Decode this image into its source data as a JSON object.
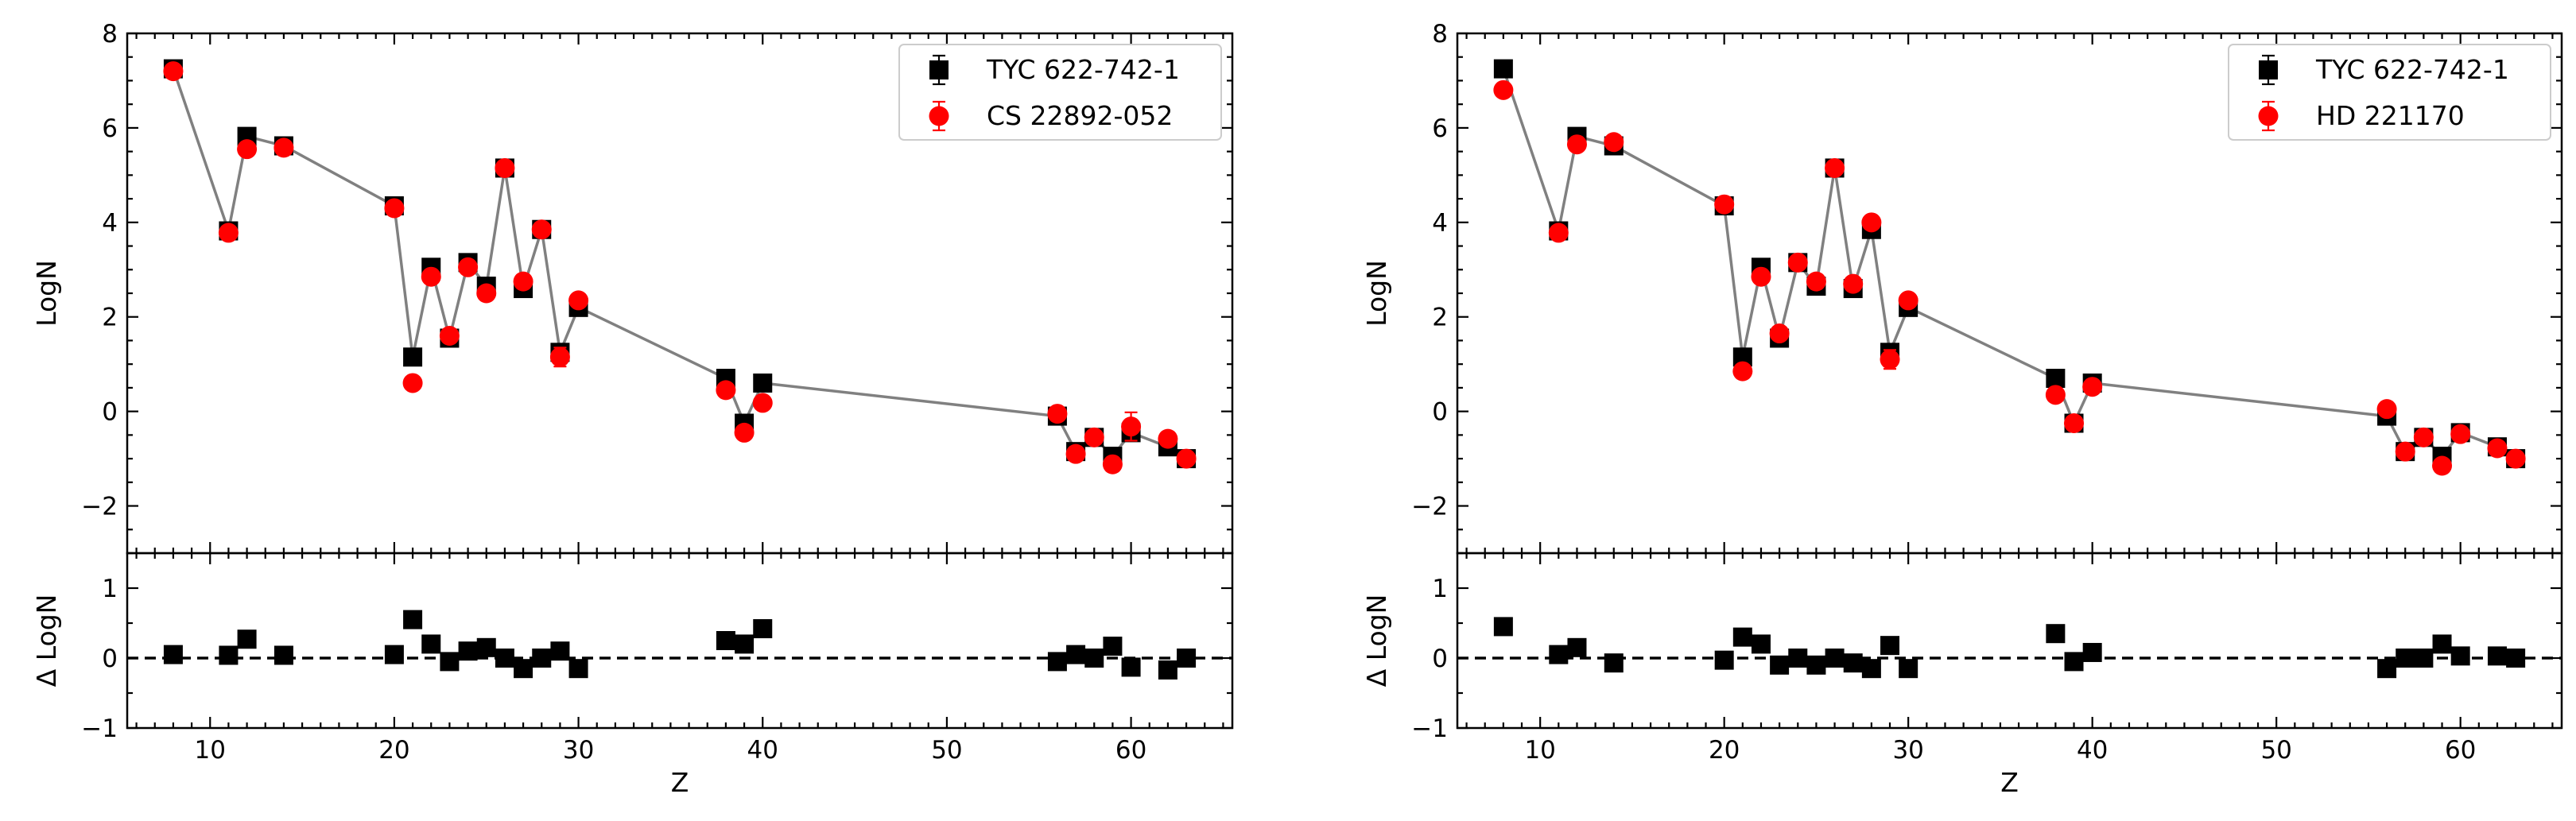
{
  "chart_data": [
    {
      "type": "scatter",
      "panel": "left",
      "xlabel": "Z",
      "ylabel_top": "LogN",
      "ylabel_bottom": "Δ LogN",
      "xlim": [
        5.5,
        65.5
      ],
      "ylim_top": [
        -3,
        8
      ],
      "ylim_bottom": [
        -1,
        1.5
      ],
      "xticks": [
        10,
        20,
        30,
        40,
        50,
        60
      ],
      "xtick_labels": [
        "10",
        "20",
        "30",
        "40",
        "50",
        "60"
      ],
      "yticks_top": [
        -2,
        0,
        2,
        4,
        6,
        8
      ],
      "ytick_labels_top": [
        "−2",
        "0",
        "2",
        "4",
        "6",
        "8"
      ],
      "yticks_bottom": [
        -1,
        0,
        1
      ],
      "ytick_labels_bottom": [
        "−1",
        "0",
        "1"
      ],
      "legend_position": "top-right",
      "series": [
        {
          "name": "TYC 622-742-1",
          "marker": "square",
          "color": "#000000",
          "x": [
            8,
            11,
            12,
            14,
            20,
            21,
            22,
            23,
            24,
            25,
            26,
            27,
            28,
            29,
            30,
            38,
            39,
            40,
            56,
            57,
            58,
            59,
            60,
            62,
            63
          ],
          "y": [
            7.25,
            3.82,
            5.82,
            5.62,
            4.35,
            1.15,
            3.05,
            1.55,
            3.15,
            2.65,
            5.15,
            2.6,
            3.85,
            1.25,
            2.2,
            0.7,
            -0.25,
            0.6,
            -0.1,
            -0.85,
            -0.55,
            -0.95,
            -0.45,
            -0.75,
            -1.0
          ],
          "yerr": [
            0.1,
            0.1,
            0.1,
            0.1,
            0.1,
            0.1,
            0.1,
            0.1,
            0.1,
            0.1,
            0.1,
            0.1,
            0.1,
            0.1,
            0.1,
            0.1,
            0.1,
            0.1,
            0.1,
            0.1,
            0.1,
            0.1,
            0.1,
            0.1,
            0.1
          ]
        },
        {
          "name": "CS 22892-052",
          "marker": "circle",
          "color": "#ff0000",
          "x": [
            8,
            11,
            12,
            14,
            20,
            21,
            22,
            23,
            24,
            25,
            26,
            27,
            28,
            29,
            30,
            38,
            39,
            40,
            56,
            57,
            58,
            59,
            60,
            62,
            63
          ],
          "y": [
            7.2,
            3.78,
            5.55,
            5.58,
            4.3,
            0.6,
            2.85,
            1.6,
            3.05,
            2.5,
            5.15,
            2.75,
            3.85,
            1.15,
            2.35,
            0.45,
            -0.45,
            0.18,
            -0.05,
            -0.9,
            -0.55,
            -1.12,
            -0.32,
            -0.58,
            -1.0
          ],
          "yerr": [
            0.12,
            0.12,
            0.12,
            0.12,
            0.12,
            0.12,
            0.12,
            0.12,
            0.12,
            0.12,
            0.12,
            0.12,
            0.12,
            0.2,
            0.12,
            0.12,
            0.12,
            0.12,
            0.12,
            0.12,
            0.12,
            0.12,
            0.3,
            0.12,
            0.12
          ]
        }
      ],
      "delta": {
        "x": [
          8,
          11,
          12,
          14,
          20,
          21,
          22,
          23,
          24,
          25,
          26,
          27,
          28,
          29,
          30,
          38,
          39,
          40,
          56,
          57,
          58,
          59,
          60,
          62,
          63
        ],
        "y": [
          0.05,
          0.04,
          0.27,
          0.04,
          0.05,
          0.55,
          0.2,
          -0.05,
          0.1,
          0.15,
          0.0,
          -0.15,
          0.0,
          0.1,
          -0.15,
          0.25,
          0.2,
          0.42,
          -0.05,
          0.05,
          0.0,
          0.17,
          -0.13,
          -0.17,
          0.0
        ]
      }
    },
    {
      "type": "scatter",
      "panel": "right",
      "xlabel": "Z",
      "ylabel_top": "LogN",
      "ylabel_bottom": "Δ LogN",
      "xlim": [
        5.5,
        65.5
      ],
      "ylim_top": [
        -3,
        8
      ],
      "ylim_bottom": [
        -1,
        1.5
      ],
      "xticks": [
        10,
        20,
        30,
        40,
        50,
        60
      ],
      "xtick_labels": [
        "10",
        "20",
        "30",
        "40",
        "50",
        "60"
      ],
      "yticks_top": [
        -2,
        0,
        2,
        4,
        6,
        8
      ],
      "ytick_labels_top": [
        "−2",
        "0",
        "2",
        "4",
        "6",
        "8"
      ],
      "yticks_bottom": [
        -1,
        0,
        1
      ],
      "ytick_labels_bottom": [
        "−1",
        "0",
        "1"
      ],
      "legend_position": "top-right",
      "series": [
        {
          "name": "TYC 622-742-1",
          "marker": "square",
          "color": "#000000",
          "x": [
            8,
            11,
            12,
            14,
            20,
            21,
            22,
            23,
            24,
            25,
            26,
            27,
            28,
            29,
            30,
            38,
            39,
            40,
            56,
            57,
            58,
            59,
            60,
            62,
            63
          ],
          "y": [
            7.25,
            3.82,
            5.82,
            5.62,
            4.35,
            1.15,
            3.05,
            1.55,
            3.15,
            2.65,
            5.15,
            2.6,
            3.85,
            1.25,
            2.2,
            0.7,
            -0.25,
            0.6,
            -0.1,
            -0.85,
            -0.55,
            -0.95,
            -0.45,
            -0.75,
            -1.0
          ],
          "yerr": [
            0.1,
            0.1,
            0.1,
            0.1,
            0.1,
            0.1,
            0.1,
            0.1,
            0.1,
            0.1,
            0.1,
            0.1,
            0.1,
            0.1,
            0.1,
            0.1,
            0.1,
            0.1,
            0.1,
            0.1,
            0.1,
            0.1,
            0.1,
            0.1,
            0.1
          ]
        },
        {
          "name": "HD 221170",
          "marker": "circle",
          "color": "#ff0000",
          "x": [
            8,
            11,
            12,
            14,
            20,
            21,
            22,
            23,
            24,
            25,
            26,
            27,
            28,
            29,
            30,
            38,
            39,
            40,
            56,
            57,
            58,
            59,
            60,
            62,
            63
          ],
          "y": [
            6.8,
            3.78,
            5.65,
            5.7,
            4.38,
            0.85,
            2.85,
            1.65,
            3.15,
            2.75,
            5.15,
            2.7,
            4.0,
            1.1,
            2.35,
            0.35,
            -0.25,
            0.52,
            0.05,
            -0.85,
            -0.55,
            -1.15,
            -0.48,
            -0.78,
            -1.0
          ],
          "yerr": [
            0.12,
            0.12,
            0.12,
            0.12,
            0.12,
            0.12,
            0.12,
            0.12,
            0.12,
            0.12,
            0.12,
            0.12,
            0.12,
            0.2,
            0.12,
            0.12,
            0.12,
            0.12,
            0.12,
            0.12,
            0.12,
            0.12,
            0.12,
            0.12,
            0.12
          ]
        }
      ],
      "delta": {
        "x": [
          8,
          11,
          12,
          14,
          20,
          21,
          22,
          23,
          24,
          25,
          26,
          27,
          28,
          29,
          30,
          38,
          39,
          40,
          56,
          57,
          58,
          59,
          60,
          62,
          63
        ],
        "y": [
          0.45,
          0.05,
          0.15,
          -0.07,
          -0.03,
          0.3,
          0.2,
          -0.1,
          0.0,
          -0.1,
          0.0,
          -0.07,
          -0.15,
          0.18,
          -0.15,
          0.35,
          -0.05,
          0.08,
          -0.15,
          0.0,
          0.0,
          0.2,
          0.03,
          0.03,
          0.0
        ]
      }
    }
  ]
}
